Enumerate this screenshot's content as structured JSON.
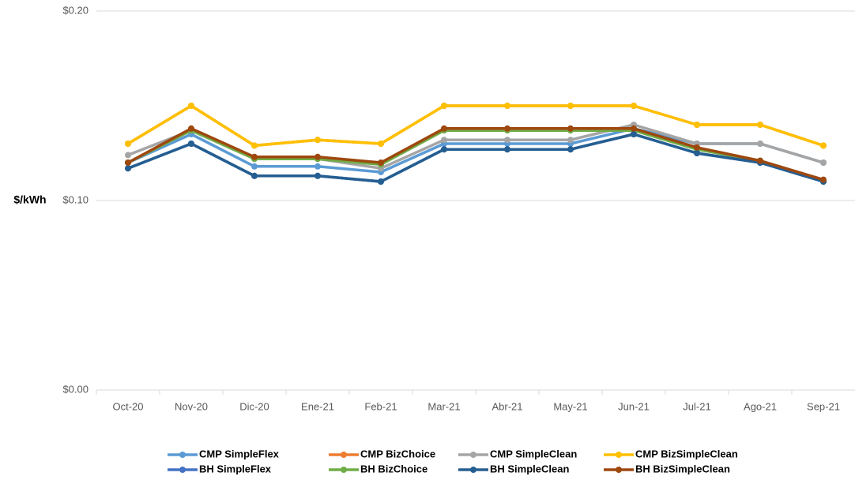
{
  "chart_data": {
    "type": "line",
    "y_axis_label": "$/kWh",
    "categories": [
      "Oct-20",
      "Nov-20",
      "Dic-20",
      "Ene-21",
      "Feb-21",
      "Mar-21",
      "Abr-21",
      "May-21",
      "Jun-21",
      "Jul-21",
      "Ago-21",
      "Sep-21"
    ],
    "ylim": [
      0,
      0.2
    ],
    "yticks": [
      {
        "value": 0,
        "label": "$0.00"
      },
      {
        "value": 0.1,
        "label": "$0.10"
      },
      {
        "value": 0.2,
        "label": "$0.20"
      }
    ],
    "grid": true,
    "legend": "bottom",
    "series": [
      {
        "name": "CMP SimpleFlex",
        "color": "#5b9bd5",
        "values": [
          0.12,
          0.135,
          0.118,
          0.118,
          0.115,
          0.13,
          0.13,
          0.13,
          0.138,
          0.13,
          0.13,
          0.12
        ]
      },
      {
        "name": "CMP BizChoice",
        "color": "#ed7d31",
        "values": [
          0.13,
          0.15,
          0.129,
          0.132,
          0.13,
          0.15,
          0.15,
          0.15,
          0.15,
          0.14,
          0.14,
          0.129
        ]
      },
      {
        "name": "CMP SimpleClean",
        "color": "#a5a5a5",
        "values": [
          0.124,
          0.137,
          0.122,
          0.122,
          0.117,
          0.132,
          0.132,
          0.132,
          0.14,
          0.13,
          0.13,
          0.12
        ]
      },
      {
        "name": "CMP BizSimpleClean",
        "color": "#ffc000",
        "values": [
          0.13,
          0.15,
          0.129,
          0.132,
          0.13,
          0.15,
          0.15,
          0.15,
          0.15,
          0.14,
          0.14,
          0.129
        ]
      },
      {
        "name": "BH SimpleFlex",
        "color": "#4472c4",
        "values": [
          0.117,
          0.13,
          0.113,
          0.113,
          0.11,
          0.127,
          0.127,
          0.127,
          0.135,
          0.125,
          0.12,
          0.11
        ]
      },
      {
        "name": "BH BizChoice",
        "color": "#70ad47",
        "values": [
          0.12,
          0.137,
          0.122,
          0.122,
          0.119,
          0.137,
          0.137,
          0.137,
          0.137,
          0.127,
          0.121,
          0.11
        ]
      },
      {
        "name": "BH SimpleClean",
        "color": "#255e91",
        "values": [
          0.117,
          0.13,
          0.113,
          0.113,
          0.11,
          0.127,
          0.127,
          0.127,
          0.135,
          0.125,
          0.12,
          0.11
        ]
      },
      {
        "name": "BH BizSimpleClean",
        "color": "#9e480e",
        "values": [
          0.12,
          0.138,
          0.123,
          0.123,
          0.12,
          0.138,
          0.138,
          0.138,
          0.138,
          0.128,
          0.121,
          0.111
        ]
      }
    ]
  }
}
